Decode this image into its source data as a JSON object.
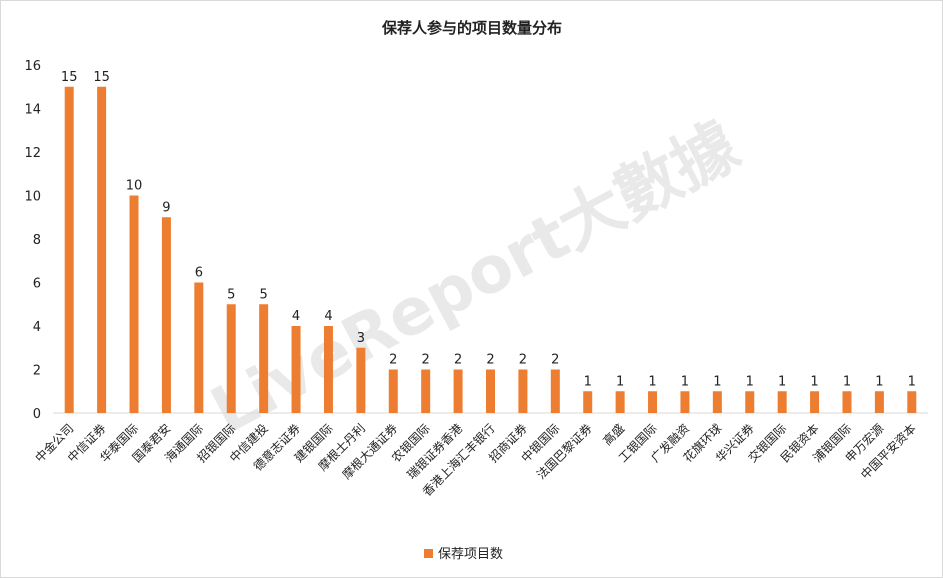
{
  "watermark": "LiveReport大數據",
  "chart_data": {
    "type": "bar",
    "title": "保荐人参与的项目数量分布",
    "categories": [
      "中金公司",
      "中信证券",
      "华泰国际",
      "国泰君安",
      "海通国际",
      "招银国际",
      "中信建投",
      "德意志证券",
      "建银国际",
      "摩根士丹利",
      "摩根大通证券",
      "农银国际",
      "瑞银证券香港",
      "香港上海汇丰银行",
      "招商证券",
      "中银国际",
      "法国巴黎证券",
      "高盛",
      "工银国际",
      "广发融资",
      "花旗环球",
      "华兴证券",
      "交银国际",
      "民银资本",
      "浦银国际",
      "申万宏源",
      "中国平安资本"
    ],
    "series": [
      {
        "name": "保荐项目数",
        "values": [
          15,
          15,
          10,
          9,
          6,
          5,
          5,
          4,
          4,
          3,
          2,
          2,
          2,
          2,
          2,
          2,
          1,
          1,
          1,
          1,
          1,
          1,
          1,
          1,
          1,
          1,
          1
        ]
      }
    ],
    "yticks": [
      0,
      2,
      4,
      6,
      8,
      10,
      12,
      14,
      16
    ],
    "ylim": [
      0,
      16
    ],
    "grid": false,
    "legend_position": "bottom",
    "bar_color": "#ED7D31"
  }
}
